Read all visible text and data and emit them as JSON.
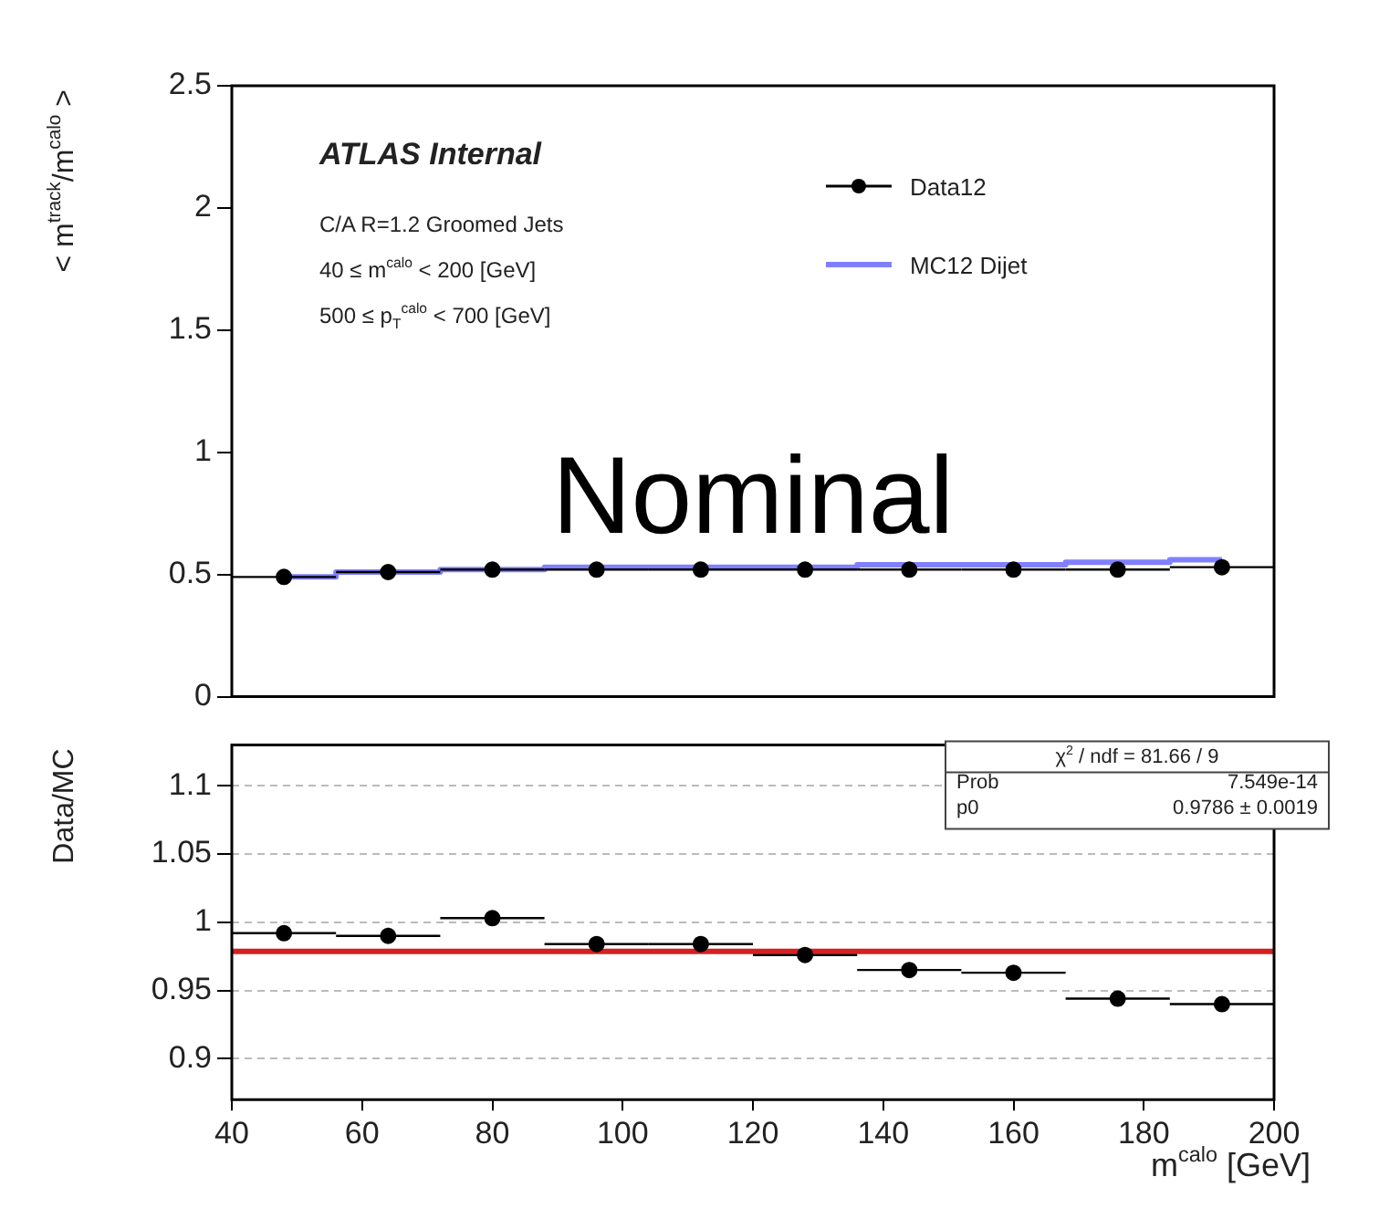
{
  "chart_data": [
    {
      "type": "scatter",
      "ylabel": "< m$^{track}$/m$^{calo}$ >",
      "xlim": [
        40,
        200
      ],
      "xticks": [
        40,
        60,
        80,
        100,
        120,
        140,
        160,
        180,
        200
      ],
      "ylim": [
        0,
        2.5
      ],
      "yticks": [
        0,
        0.5,
        1,
        1.5,
        2,
        2.5
      ],
      "tick_labels": "y",
      "legend": "top right",
      "annotations": [
        "ATLAS Internal",
        "C/A R=1.2 Groomed Jets",
        "40 ≤ m$^{calo}$ < 200 [GeV]",
        "500 ≤ p$_{T}$$^{calo}$ < 700 [GeV]",
        "Nominal"
      ],
      "series": [
        {
          "name": "Data12",
          "type": "scatter",
          "marker": "circle",
          "color": "#000000",
          "x": [
            48,
            64,
            80,
            96,
            112,
            128,
            144,
            160,
            176,
            192
          ],
          "values": [
            0.49,
            0.51,
            0.52,
            0.52,
            0.52,
            0.52,
            0.52,
            0.52,
            0.52,
            0.53
          ],
          "xerrors": [
            8,
            8,
            8,
            8,
            8,
            8,
            8,
            8,
            8,
            8
          ]
        },
        {
          "name": "MC12 Dijet",
          "type": "step",
          "color": "#8080ff",
          "x": [
            48,
            64,
            80,
            96,
            112,
            128,
            144,
            160,
            176,
            192
          ],
          "values": [
            0.49,
            0.51,
            0.52,
            0.53,
            0.53,
            0.53,
            0.54,
            0.54,
            0.55,
            0.56
          ]
        }
      ]
    },
    {
      "type": "scatter",
      "xlabel": "m$^{calo}$ [GeV]",
      "ylabel": "Data/MC",
      "xlim": [
        40,
        200
      ],
      "xticks": [
        40,
        60,
        80,
        100,
        120,
        140,
        160,
        180,
        200
      ],
      "ylim": [
        0.87,
        1.13
      ],
      "yticks": [
        0.9,
        0.95,
        1,
        1.05,
        1.1
      ],
      "grid": "y",
      "annotations": [
        "χ$^{2}$ / ndf = 81.66 / 9",
        "Prob 7.549e-14",
        "p0 0.9786 ± 0.0019"
      ],
      "ref_lines": [
        {
          "axis": "y",
          "value": 0.9786,
          "color": "#d42020"
        }
      ],
      "series": [
        {
          "type": "scatter",
          "marker": "circle",
          "color": "#000000",
          "x": [
            48,
            64,
            80,
            96,
            112,
            128,
            144,
            160,
            176,
            192
          ],
          "values": [
            0.992,
            0.99,
            1.003,
            0.984,
            0.984,
            0.976,
            0.965,
            0.963,
            0.944,
            0.94
          ],
          "xerrors": [
            8,
            8,
            8,
            8,
            8,
            8,
            8,
            8,
            8,
            8
          ]
        }
      ]
    }
  ]
}
